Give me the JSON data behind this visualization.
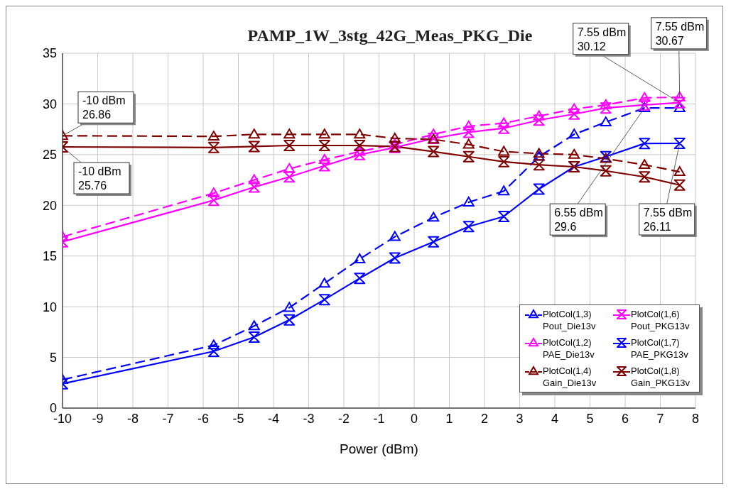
{
  "chart_data": {
    "type": "line",
    "title": "PAMP_1W_3stg_42G_Meas_PKG_Die",
    "xlabel": "Power (dBm)",
    "x": [
      -10,
      -5.7,
      -4.55,
      -3.55,
      -2.55,
      -1.55,
      -0.55,
      0.55,
      1.55,
      2.55,
      3.55,
      4.55,
      5.45,
      6.55,
      7.55
    ],
    "series": [
      {
        "name": "PlotCol(1,3) Pout_Die13v",
        "color": "#0000ff",
        "line_style": "dashed",
        "marker": "triangle",
        "values": [
          2.8,
          6.2,
          8.1,
          9.9,
          12.3,
          14.7,
          16.9,
          18.8,
          20.3,
          21.4,
          24.8,
          27.0,
          28.2,
          29.6,
          29.6
        ]
      },
      {
        "name": "PlotCol(1,6) Pout_PKG13v",
        "color": "#ff00ff",
        "line_style": "solid",
        "marker": "diamond",
        "values": [
          16.4,
          20.5,
          21.8,
          22.8,
          23.9,
          25.0,
          25.7,
          26.6,
          27.2,
          27.6,
          28.4,
          29.0,
          29.6,
          29.9,
          30.12
        ]
      },
      {
        "name": "PlotCol(1,2) PAE_Die13v",
        "color": "#ff00ff",
        "line_style": "dashed",
        "marker": "triangle",
        "values": [
          16.9,
          21.2,
          22.5,
          23.6,
          24.5,
          25.3,
          26.0,
          27.0,
          27.8,
          28.1,
          28.8,
          29.5,
          29.9,
          30.6,
          30.67
        ]
      },
      {
        "name": "PlotCol(1,7) PAE_PKG13v",
        "color": "#0000ff",
        "line_style": "solid",
        "marker": "diamond",
        "values": [
          2.4,
          5.6,
          7.0,
          8.7,
          10.7,
          12.8,
          14.8,
          16.4,
          17.9,
          18.9,
          21.6,
          23.8,
          24.8,
          26.1,
          26.11
        ]
      },
      {
        "name": "PlotCol(1,4) Gain_Die13v",
        "color": "#800000",
        "line_style": "dashed",
        "marker": "triangle",
        "values": [
          26.86,
          26.8,
          27.0,
          27.0,
          27.0,
          27.0,
          26.6,
          26.5,
          26.0,
          25.3,
          25.1,
          25.0,
          24.6,
          24.0,
          23.3
        ]
      },
      {
        "name": "PlotCol(1,8) Gain_PKG13v",
        "color": "#800000",
        "line_style": "solid",
        "marker": "diamond",
        "values": [
          25.76,
          25.7,
          25.8,
          25.9,
          25.9,
          25.9,
          25.8,
          25.3,
          24.8,
          24.3,
          24.0,
          23.8,
          23.4,
          22.8,
          22.0
        ]
      }
    ],
    "xlim": [
      -10,
      8
    ],
    "xticks": [
      -10,
      -9,
      -8,
      -7,
      -6,
      -5,
      -4,
      -3,
      -2,
      -1,
      0,
      1,
      2,
      3,
      4,
      5,
      6,
      7,
      8
    ],
    "ylim": [
      0,
      35
    ],
    "yticks": [
      0,
      5,
      10,
      15,
      20,
      25,
      30,
      35
    ],
    "grid": true,
    "legend": "bottom right",
    "annotations": [
      {
        "text": "-10 dBm\n26.86",
        "x": -10,
        "y": 26.86
      },
      {
        "text": "-10 dBm\n25.76",
        "x": -10,
        "y": 25.76
      },
      {
        "text": "7.55 dBm\n30.12",
        "x": 7.55,
        "y": 30.12
      },
      {
        "text": "7.55 dBm\n30.67",
        "x": 7.55,
        "y": 30.67
      },
      {
        "text": "6.55 dBm\n29.6",
        "x": 6.55,
        "y": 29.6
      },
      {
        "text": "7.55 dBm\n26.11",
        "x": 7.55,
        "y": 26.11
      }
    ]
  }
}
